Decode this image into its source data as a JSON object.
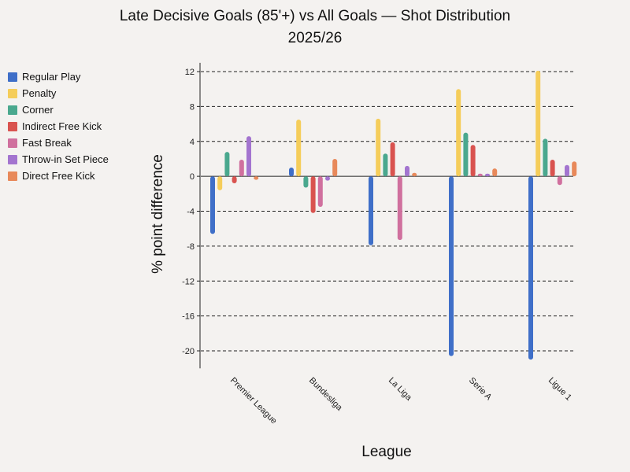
{
  "chart_data": {
    "type": "bar",
    "title_line1": "Late Decisive Goals (85'+) vs All Goals — Shot Distribution",
    "title_line2": "2025/26",
    "xlabel": "League",
    "ylabel": "% point difference",
    "ylim": [
      -22,
      13
    ],
    "yticks": [
      12,
      8,
      4,
      0,
      -4,
      -8,
      -12,
      -16,
      -20
    ],
    "categories": [
      "Premier League",
      "Bundesliga",
      "La Liga",
      "Serie A",
      "Ligue 1"
    ],
    "series": [
      {
        "name": "Regular Play",
        "color": "#3f6fc8",
        "values": [
          -6.6,
          1.0,
          -7.9,
          -20.6,
          -21.0
        ]
      },
      {
        "name": "Penalty",
        "color": "#f5cd5a",
        "values": [
          -1.6,
          6.5,
          6.6,
          10.0,
          12.1
        ]
      },
      {
        "name": "Corner",
        "color": "#4aa88e",
        "values": [
          2.8,
          -1.3,
          2.6,
          5.0,
          4.3
        ]
      },
      {
        "name": "Indirect Free Kick",
        "color": "#d9534f",
        "values": [
          -0.8,
          -4.2,
          3.9,
          3.6,
          1.9
        ]
      },
      {
        "name": "Fast Break",
        "color": "#d0709e",
        "values": [
          1.9,
          -3.5,
          -7.3,
          0.3,
          -1.0
        ]
      },
      {
        "name": "Throw-in Set Piece",
        "color": "#a374cf",
        "values": [
          4.6,
          -0.5,
          1.2,
          0.3,
          1.3
        ]
      },
      {
        "name": "Direct Free Kick",
        "color": "#e8895a",
        "values": [
          -0.4,
          2.0,
          0.4,
          0.9,
          1.7
        ]
      }
    ]
  }
}
